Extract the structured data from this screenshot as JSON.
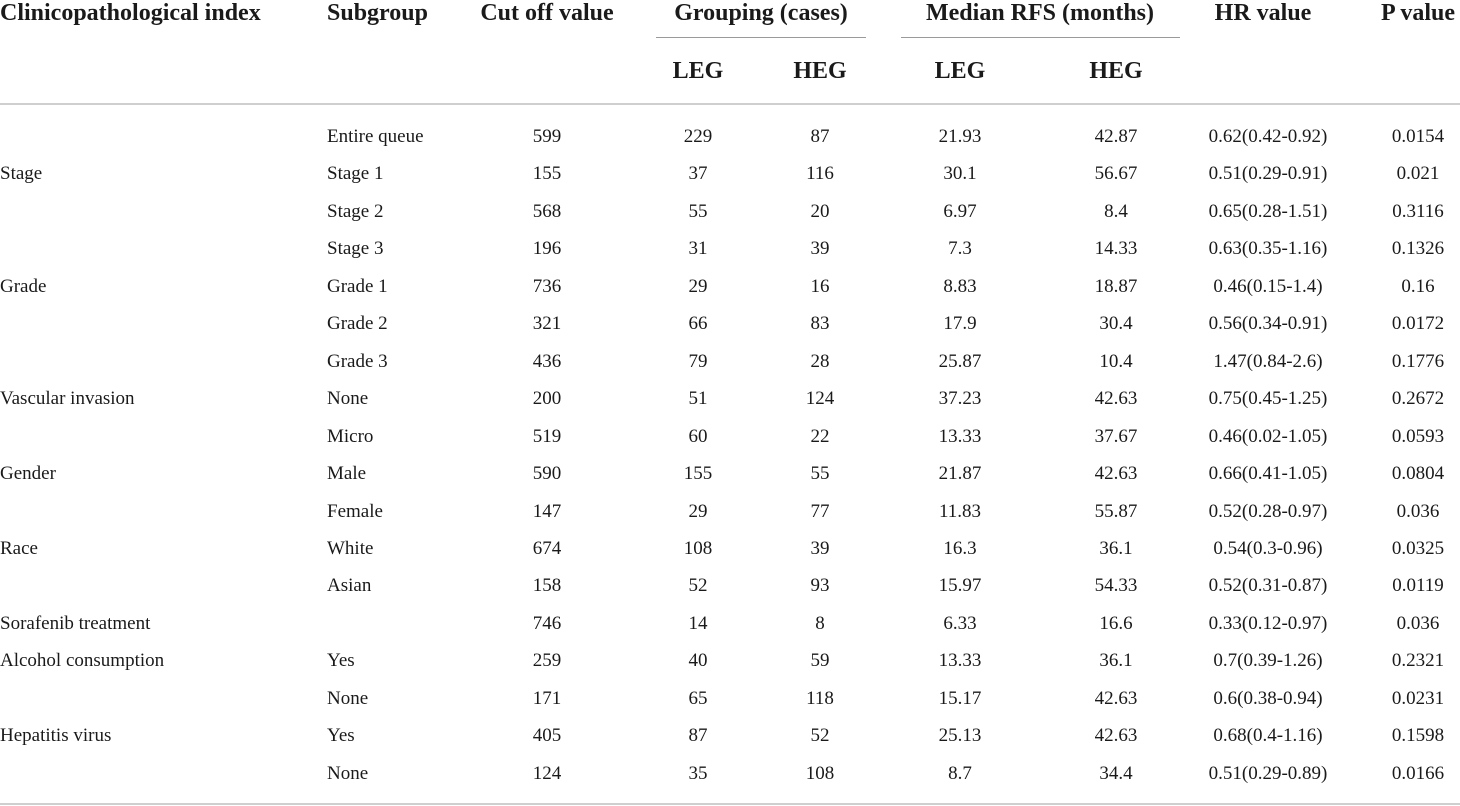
{
  "headers": {
    "index": "Clinicopathological index",
    "subgroup": "Subgroup",
    "cutoff": "Cut off value",
    "grouping": "Grouping (cases)",
    "median": "Median RFS (months)",
    "hr": "HR value",
    "p": "P value",
    "grouping_leg": "LEG",
    "grouping_heg": "HEG",
    "median_leg": "LEG",
    "median_heg": "HEG"
  },
  "rows": [
    {
      "index": "",
      "subgroup": "Entire queue",
      "cutoff": "599",
      "leg": "229",
      "heg": "87",
      "med_leg": "21.93",
      "med_heg": "42.87",
      "hr": "0.62(0.42-0.92)",
      "p": "0.0154"
    },
    {
      "index": "Stage",
      "subgroup": "Stage 1",
      "cutoff": "155",
      "leg": "37",
      "heg": "116",
      "med_leg": "30.1",
      "med_heg": "56.67",
      "hr": "0.51(0.29-0.91)",
      "p": "0.021"
    },
    {
      "index": "",
      "subgroup": "Stage 2",
      "cutoff": "568",
      "leg": "55",
      "heg": "20",
      "med_leg": "6.97",
      "med_heg": "8.4",
      "hr": "0.65(0.28-1.51)",
      "p": "0.3116"
    },
    {
      "index": "",
      "subgroup": "Stage 3",
      "cutoff": "196",
      "leg": "31",
      "heg": "39",
      "med_leg": "7.3",
      "med_heg": "14.33",
      "hr": "0.63(0.35-1.16)",
      "p": "0.1326"
    },
    {
      "index": "Grade",
      "subgroup": "Grade 1",
      "cutoff": "736",
      "leg": "29",
      "heg": "16",
      "med_leg": "8.83",
      "med_heg": "18.87",
      "hr": "0.46(0.15-1.4)",
      "p": "0.16"
    },
    {
      "index": "",
      "subgroup": "Grade 2",
      "cutoff": "321",
      "leg": "66",
      "heg": "83",
      "med_leg": "17.9",
      "med_heg": "30.4",
      "hr": "0.56(0.34-0.91)",
      "p": "0.0172"
    },
    {
      "index": "",
      "subgroup": "Grade 3",
      "cutoff": "436",
      "leg": "79",
      "heg": "28",
      "med_leg": "25.87",
      "med_heg": "10.4",
      "hr": "1.47(0.84-2.6)",
      "p": "0.1776"
    },
    {
      "index": "Vascular invasion",
      "subgroup": "None",
      "cutoff": "200",
      "leg": "51",
      "heg": "124",
      "med_leg": "37.23",
      "med_heg": "42.63",
      "hr": "0.75(0.45-1.25)",
      "p": "0.2672"
    },
    {
      "index": "",
      "subgroup": "Micro",
      "cutoff": "519",
      "leg": "60",
      "heg": "22",
      "med_leg": "13.33",
      "med_heg": "37.67",
      "hr": "0.46(0.02-1.05)",
      "p": "0.0593"
    },
    {
      "index": "Gender",
      "subgroup": "Male",
      "cutoff": "590",
      "leg": "155",
      "heg": "55",
      "med_leg": "21.87",
      "med_heg": "42.63",
      "hr": "0.66(0.41-1.05)",
      "p": "0.0804"
    },
    {
      "index": "",
      "subgroup": "Female",
      "cutoff": "147",
      "leg": "29",
      "heg": "77",
      "med_leg": "11.83",
      "med_heg": "55.87",
      "hr": "0.52(0.28-0.97)",
      "p": "0.036"
    },
    {
      "index": "Race",
      "subgroup": "White",
      "cutoff": "674",
      "leg": "108",
      "heg": "39",
      "med_leg": "16.3",
      "med_heg": "36.1",
      "hr": "0.54(0.3-0.96)",
      "p": "0.0325"
    },
    {
      "index": "",
      "subgroup": "Asian",
      "cutoff": "158",
      "leg": "52",
      "heg": "93",
      "med_leg": "15.97",
      "med_heg": "54.33",
      "hr": "0.52(0.31-0.87)",
      "p": "0.0119"
    },
    {
      "index": "Sorafenib treatment",
      "subgroup": "",
      "cutoff": "746",
      "leg": "14",
      "heg": "8",
      "med_leg": "6.33",
      "med_heg": "16.6",
      "hr": "0.33(0.12-0.97)",
      "p": "0.036"
    },
    {
      "index": "Alcohol consumption",
      "subgroup": "Yes",
      "cutoff": "259",
      "leg": "40",
      "heg": "59",
      "med_leg": "13.33",
      "med_heg": "36.1",
      "hr": "0.7(0.39-1.26)",
      "p": "0.2321"
    },
    {
      "index": "",
      "subgroup": "None",
      "cutoff": "171",
      "leg": "65",
      "heg": "118",
      "med_leg": "15.17",
      "med_heg": "42.63",
      "hr": "0.6(0.38-0.94)",
      "p": "0.0231"
    },
    {
      "index": "Hepatitis virus",
      "subgroup": "Yes",
      "cutoff": "405",
      "leg": "87",
      "heg": "52",
      "med_leg": "25.13",
      "med_heg": "42.63",
      "hr": "0.68(0.4-1.16)",
      "p": "0.1598"
    },
    {
      "index": "",
      "subgroup": "None",
      "cutoff": "124",
      "leg": "35",
      "heg": "108",
      "med_leg": "8.7",
      "med_heg": "34.4",
      "hr": "0.51(0.29-0.89)",
      "p": "0.0166"
    }
  ]
}
